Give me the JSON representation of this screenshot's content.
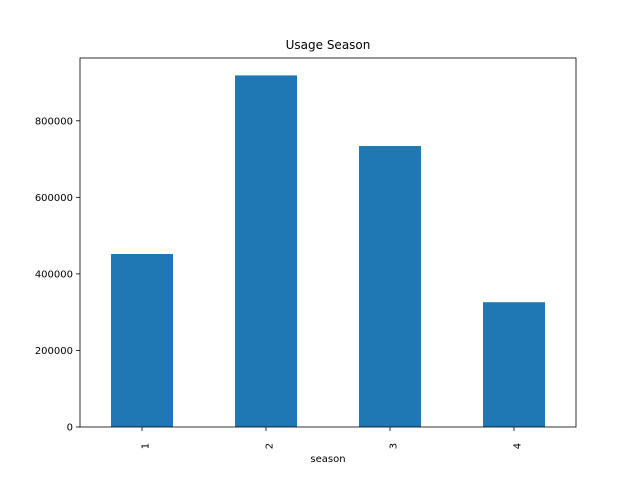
{
  "chart_data": {
    "type": "bar",
    "title": "Usage Season",
    "xlabel": "season",
    "ylabel": "",
    "categories": [
      "1",
      "2",
      "3",
      "4"
    ],
    "values": [
      452000,
      918500,
      734000,
      326000
    ],
    "ylim": [
      0,
      964000
    ],
    "yticks": [
      0,
      200000,
      400000,
      600000,
      800000
    ],
    "ytick_labels": [
      "0",
      "200000",
      "400000",
      "600000",
      "800000"
    ],
    "bar_color": "#1f77b4",
    "grid": false,
    "legend": "none"
  }
}
